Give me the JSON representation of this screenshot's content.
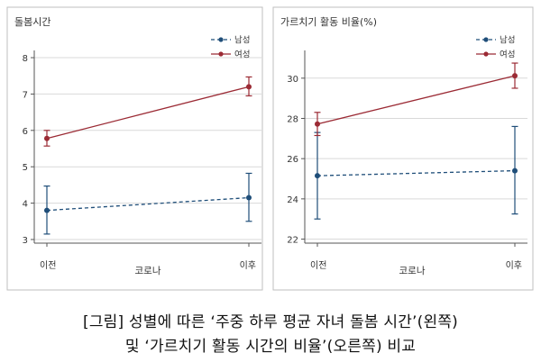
{
  "caption": {
    "line1": "[그림] 성별에 따른 ‘주중 하루 평균 자녀 돌봄 시간’(왼쪽)",
    "line2": "및 ‘가르치기 활동 시간의 비율’(오른쪽) 비교"
  },
  "colors": {
    "male": "#1f4e79",
    "female": "#9b2a34",
    "axis": "#555555",
    "grid": "#d9d9d9",
    "frame": "#bfbfbf",
    "text": "#333333"
  },
  "chart_data": [
    {
      "type": "line",
      "title": "돌봄시간",
      "xlabel": "코로나",
      "ylabel": "",
      "categories": [
        "이전",
        "이후"
      ],
      "ylim": [
        2.9,
        8.1
      ],
      "yticks": [
        3,
        4,
        5,
        6,
        7,
        8
      ],
      "grid": true,
      "legend": "top-right",
      "series": [
        {
          "name": "남성",
          "style": "dashed",
          "values": [
            3.8,
            4.15
          ],
          "lower": [
            3.15,
            3.5
          ],
          "upper": [
            4.47,
            4.82
          ]
        },
        {
          "name": "여성",
          "style": "solid",
          "values": [
            5.78,
            7.2
          ],
          "lower": [
            5.57,
            6.95
          ],
          "upper": [
            6.0,
            7.47
          ]
        }
      ]
    },
    {
      "type": "line",
      "title": "가르치기 활동 비율(%)",
      "xlabel": "코로나",
      "ylabel": "",
      "categories": [
        "이전",
        "이후"
      ],
      "ylim": [
        21.8,
        31.2
      ],
      "yticks": [
        22,
        24,
        26,
        28,
        30
      ],
      "grid": true,
      "legend": "top-right",
      "series": [
        {
          "name": "남성",
          "style": "dashed",
          "values": [
            25.15,
            25.4
          ],
          "lower": [
            23.0,
            23.25
          ],
          "upper": [
            27.3,
            27.6
          ]
        },
        {
          "name": "여성",
          "style": "solid",
          "values": [
            27.72,
            30.12
          ],
          "lower": [
            27.15,
            29.5
          ],
          "upper": [
            28.3,
            30.75
          ]
        }
      ]
    }
  ]
}
